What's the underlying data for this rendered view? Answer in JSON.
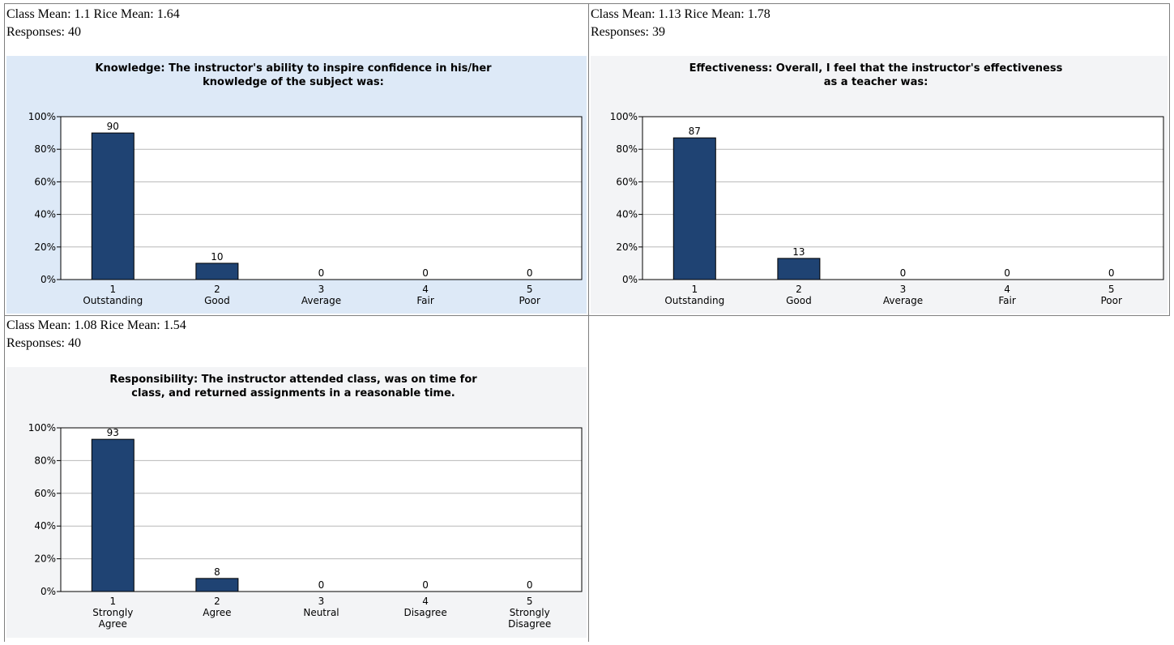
{
  "panels": [
    {
      "stats_line1": "Class Mean: 1.1 Rice Mean: 1.64",
      "stats_line2": "Responses: 40",
      "chart_data": {
        "type": "bar",
        "title": [
          "Knowledge: The instructor's ability to inspire confidence in his/her",
          "knowledge of the subject was:"
        ],
        "categories": [
          [
            "1",
            "Outstanding"
          ],
          [
            "2",
            "Good"
          ],
          [
            "3",
            "Average"
          ],
          [
            "4",
            "Fair"
          ],
          [
            "5",
            "Poor"
          ]
        ],
        "values": [
          90,
          10,
          0,
          0,
          0
        ],
        "data_labels": [
          "90",
          "10",
          "0",
          "0",
          "0"
        ],
        "ylim": [
          0,
          100
        ],
        "yticks": [
          "0%",
          "20%",
          "40%",
          "60%",
          "80%",
          "100%"
        ],
        "grid": true,
        "bar_color": "#1f4373",
        "background": "#dde9f7"
      }
    },
    {
      "stats_line1": "Class Mean: 1.13 Rice Mean: 1.78",
      "stats_line2": "Responses: 39",
      "chart_data": {
        "type": "bar",
        "title": [
          "Effectiveness: Overall, I feel that the instructor's effectiveness",
          "as a teacher was:"
        ],
        "categories": [
          [
            "1",
            "Outstanding"
          ],
          [
            "2",
            "Good"
          ],
          [
            "3",
            "Average"
          ],
          [
            "4",
            "Fair"
          ],
          [
            "5",
            "Poor"
          ]
        ],
        "values": [
          87,
          13,
          0,
          0,
          0
        ],
        "data_labels": [
          "87",
          "13",
          "0",
          "0",
          "0"
        ],
        "ylim": [
          0,
          100
        ],
        "yticks": [
          "0%",
          "20%",
          "40%",
          "60%",
          "80%",
          "100%"
        ],
        "grid": true,
        "bar_color": "#1f4373",
        "background": "#f3f4f6"
      }
    },
    {
      "stats_line1": "Class Mean: 1.08 Rice Mean: 1.54",
      "stats_line2": "Responses: 40",
      "chart_data": {
        "type": "bar",
        "title": [
          "Responsibility: The instructor attended class, was on time for",
          "class, and returned assignments in a reasonable time."
        ],
        "categories": [
          [
            "1",
            "Strongly",
            "Agree"
          ],
          [
            "2",
            "Agree"
          ],
          [
            "3",
            "Neutral"
          ],
          [
            "4",
            "Disagree"
          ],
          [
            "5",
            "Strongly",
            "Disagree"
          ]
        ],
        "values": [
          93,
          8,
          0,
          0,
          0
        ],
        "data_labels": [
          "93",
          "8",
          "0",
          "0",
          "0"
        ],
        "ylim": [
          0,
          100
        ],
        "yticks": [
          "0%",
          "20%",
          "40%",
          "60%",
          "80%",
          "100%"
        ],
        "grid": true,
        "bar_color": "#1f4373",
        "background": "#f3f4f6"
      }
    }
  ]
}
